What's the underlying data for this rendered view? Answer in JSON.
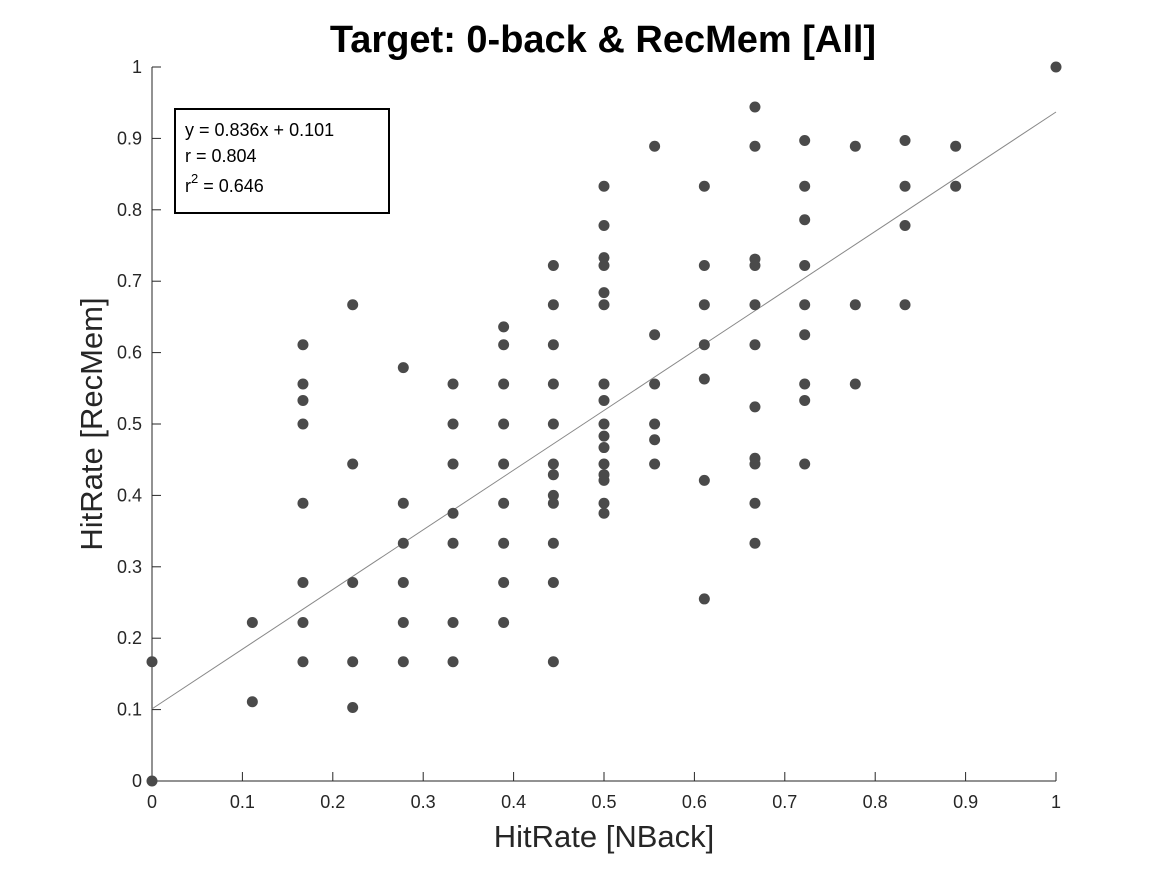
{
  "chart_data": {
    "type": "scatter",
    "title": "Target: 0-back & RecMem [All]",
    "xlabel": "HitRate [NBack]",
    "ylabel": "HitRate [RecMem]",
    "xlim": [
      0,
      1
    ],
    "ylim": [
      0,
      1
    ],
    "xticks": [
      "0",
      "0.1",
      "0.2",
      "0.3",
      "0.4",
      "0.5",
      "0.6",
      "0.7",
      "0.8",
      "0.9",
      "1"
    ],
    "yticks": [
      "0",
      "0.1",
      "0.2",
      "0.3",
      "0.4",
      "0.5",
      "0.6",
      "0.7",
      "0.8",
      "0.9",
      "1"
    ],
    "grid": false,
    "marker_color": "#4a4a4a",
    "fit_line_color": "#888888",
    "fit": {
      "slope": 0.836,
      "intercept": 0.101
    },
    "annotation": {
      "equation": "y = 0.836x + 0.101",
      "r": "r = 0.804",
      "r2_prefix": "r",
      "r2_exponent": "2",
      "r2_value": " = 0.646",
      "location": "top-left"
    },
    "points": [
      [
        0,
        0
      ],
      [
        0,
        0.167
      ],
      [
        1,
        1
      ],
      [
        0.111,
        0.111
      ],
      [
        0.111,
        0.222
      ],
      [
        0.167,
        0.167
      ],
      [
        0.167,
        0.222
      ],
      [
        0.167,
        0.278
      ],
      [
        0.167,
        0.389
      ],
      [
        0.167,
        0.5
      ],
      [
        0.167,
        0.533
      ],
      [
        0.167,
        0.556
      ],
      [
        0.167,
        0.611
      ],
      [
        0.222,
        0.103
      ],
      [
        0.222,
        0.167
      ],
      [
        0.222,
        0.278
      ],
      [
        0.222,
        0.444
      ],
      [
        0.222,
        0.667
      ],
      [
        0.278,
        0.167
      ],
      [
        0.278,
        0.222
      ],
      [
        0.278,
        0.278
      ],
      [
        0.278,
        0.333
      ],
      [
        0.278,
        0.389
      ],
      [
        0.278,
        0.579
      ],
      [
        0.333,
        0.167
      ],
      [
        0.333,
        0.222
      ],
      [
        0.333,
        0.333
      ],
      [
        0.333,
        0.375
      ],
      [
        0.333,
        0.444
      ],
      [
        0.333,
        0.5
      ],
      [
        0.333,
        0.556
      ],
      [
        0.389,
        0.222
      ],
      [
        0.389,
        0.278
      ],
      [
        0.389,
        0.333
      ],
      [
        0.389,
        0.389
      ],
      [
        0.389,
        0.444
      ],
      [
        0.389,
        0.5
      ],
      [
        0.389,
        0.556
      ],
      [
        0.389,
        0.611
      ],
      [
        0.389,
        0.636
      ],
      [
        0.444,
        0.167
      ],
      [
        0.444,
        0.278
      ],
      [
        0.444,
        0.333
      ],
      [
        0.444,
        0.389
      ],
      [
        0.444,
        0.4
      ],
      [
        0.444,
        0.429
      ],
      [
        0.444,
        0.444
      ],
      [
        0.444,
        0.5
      ],
      [
        0.444,
        0.556
      ],
      [
        0.444,
        0.611
      ],
      [
        0.444,
        0.667
      ],
      [
        0.444,
        0.722
      ],
      [
        0.5,
        0.375
      ],
      [
        0.5,
        0.389
      ],
      [
        0.5,
        0.421
      ],
      [
        0.5,
        0.429
      ],
      [
        0.5,
        0.444
      ],
      [
        0.5,
        0.467
      ],
      [
        0.5,
        0.483
      ],
      [
        0.5,
        0.5
      ],
      [
        0.5,
        0.533
      ],
      [
        0.5,
        0.556
      ],
      [
        0.5,
        0.667
      ],
      [
        0.5,
        0.684
      ],
      [
        0.5,
        0.722
      ],
      [
        0.5,
        0.733
      ],
      [
        0.5,
        0.778
      ],
      [
        0.5,
        0.833
      ],
      [
        0.556,
        0.444
      ],
      [
        0.556,
        0.478
      ],
      [
        0.556,
        0.5
      ],
      [
        0.556,
        0.556
      ],
      [
        0.556,
        0.625
      ],
      [
        0.556,
        0.889
      ],
      [
        0.611,
        0.255
      ],
      [
        0.611,
        0.421
      ],
      [
        0.611,
        0.563
      ],
      [
        0.611,
        0.611
      ],
      [
        0.611,
        0.667
      ],
      [
        0.611,
        0.722
      ],
      [
        0.611,
        0.833
      ],
      [
        0.667,
        0.333
      ],
      [
        0.667,
        0.389
      ],
      [
        0.667,
        0.444
      ],
      [
        0.667,
        0.452
      ],
      [
        0.667,
        0.524
      ],
      [
        0.667,
        0.611
      ],
      [
        0.667,
        0.667
      ],
      [
        0.667,
        0.722
      ],
      [
        0.667,
        0.731
      ],
      [
        0.667,
        0.889
      ],
      [
        0.667,
        0.944
      ],
      [
        0.722,
        0.444
      ],
      [
        0.722,
        0.533
      ],
      [
        0.722,
        0.556
      ],
      [
        0.722,
        0.625
      ],
      [
        0.722,
        0.667
      ],
      [
        0.722,
        0.722
      ],
      [
        0.722,
        0.786
      ],
      [
        0.722,
        0.833
      ],
      [
        0.722,
        0.897
      ],
      [
        0.778,
        0.556
      ],
      [
        0.778,
        0.667
      ],
      [
        0.778,
        0.889
      ],
      [
        0.833,
        0.667
      ],
      [
        0.833,
        0.778
      ],
      [
        0.833,
        0.833
      ],
      [
        0.833,
        0.897
      ],
      [
        0.889,
        0.833
      ],
      [
        0.889,
        0.889
      ]
    ]
  }
}
